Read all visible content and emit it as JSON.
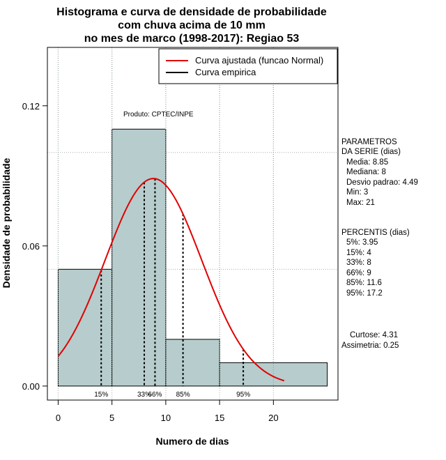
{
  "chart_data": {
    "type": "bar",
    "title": [
      "Histograma e curva de densidade de probabilidade",
      "com chuva acima de 10 mm",
      "no mes de marco (1998-2017): Regiao 53"
    ],
    "xlabel": "Numero de dias",
    "ylabel": "Densidade de probabilidade",
    "xlim": [
      -1,
      26
    ],
    "ylim": [
      -0.006,
      0.145
    ],
    "x_ticks": [
      0,
      5,
      10,
      15,
      20
    ],
    "y_ticks": [
      0.0,
      0.06,
      0.12
    ],
    "y_tick_labels": [
      "0.00",
      "0.06",
      "0.12"
    ],
    "grid_x": [
      0,
      5,
      10,
      15,
      20
    ],
    "grid_y": [
      0.05,
      0.1
    ],
    "bins": [
      {
        "start": 0,
        "end": 5,
        "density": 0.05
      },
      {
        "start": 5,
        "end": 10,
        "density": 0.11
      },
      {
        "start": 10,
        "end": 15,
        "density": 0.02
      },
      {
        "start": 15,
        "end": 25,
        "density": 0.01
      }
    ],
    "normal_curve": {
      "mean": 8.85,
      "sd": 4.49,
      "x_range": [
        0,
        21
      ],
      "color": "#e00000"
    },
    "percentile_lines": [
      {
        "label": "15%",
        "x": 4
      },
      {
        "label": "33%",
        "x": 8
      },
      {
        "label": "66%",
        "x": 9
      },
      {
        "label": "85%",
        "x": 11.6
      },
      {
        "label": "95%",
        "x": 17.2
      }
    ],
    "legend": [
      {
        "label": "Curva ajustada (funcao Normal)",
        "color": "#e00000"
      },
      {
        "label": "Curva empirica",
        "color": "#000000"
      }
    ],
    "bar_color": "#b7cccc",
    "annotation": "Produto: CPTEC/INPE"
  },
  "side_panel": {
    "params_title_1": "PARAMETROS",
    "params_title_2": "DA SERIE (dias)",
    "params": [
      "Media: 8.85",
      "Mediana: 8",
      "Desvio padrao: 4.49",
      "Min: 3",
      "Max: 21"
    ],
    "pct_title": "PERCENTIS (dias)",
    "percentis": [
      "5%: 3.95",
      "15%: 4",
      "33%: 8",
      "66%: 9",
      "85%: 11.6",
      "95%: 17.2"
    ],
    "curtose": "Curtose: 4.31",
    "assimetria": "Assimetria: 0.25"
  }
}
